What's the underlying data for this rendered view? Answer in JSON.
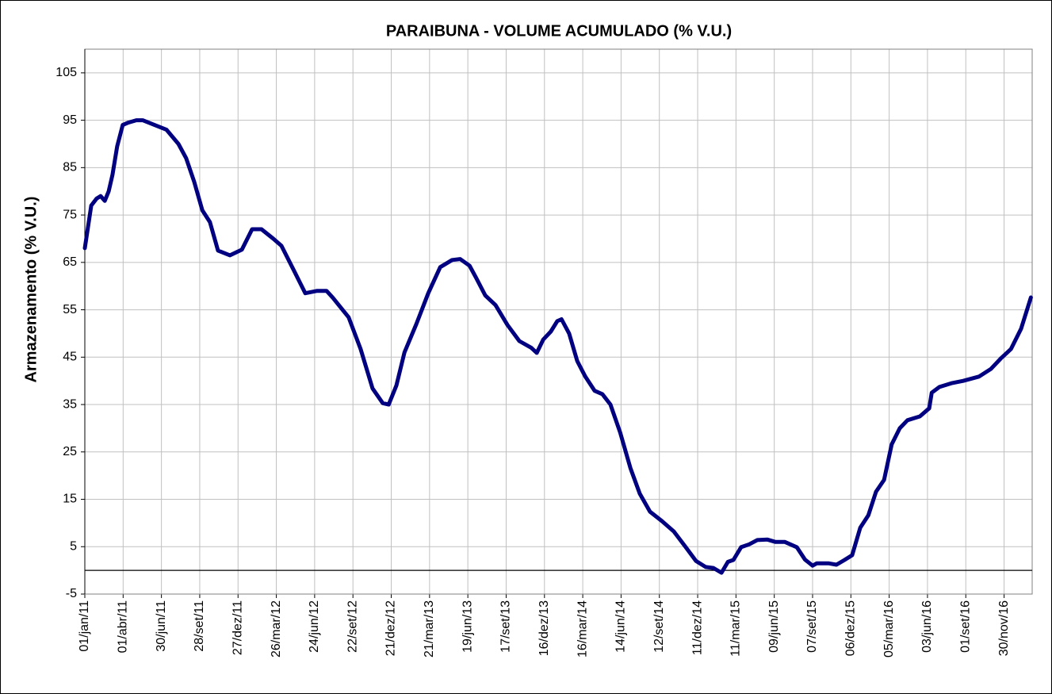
{
  "chart_data": {
    "type": "line",
    "title": "PARAIBUNA - VOLUME ACUMULADO (% V.U.)",
    "y_label": "Armazenamento (% V.U.)",
    "color": "#000080",
    "grid": true,
    "x": [
      "2011-01-01",
      "2011-01-16",
      "2011-01-29",
      "2011-02-07",
      "2011-02-17",
      "2011-02-26",
      "2011-03-07",
      "2011-03-18",
      "2011-03-31",
      "2011-04-13",
      "2011-05-02",
      "2011-05-17",
      "2011-06-14",
      "2011-07-12",
      "2011-08-09",
      "2011-08-27",
      "2011-09-15",
      "2011-10-04",
      "2011-10-22",
      "2011-11-10",
      "2011-12-08",
      "2012-01-05",
      "2012-01-29",
      "2012-02-20",
      "2012-03-19",
      "2012-04-07",
      "2012-05-05",
      "2012-06-02",
      "2012-06-30",
      "2012-07-22",
      "2012-08-06",
      "2012-09-12",
      "2012-10-10",
      "2012-11-07",
      "2012-12-01",
      "2012-12-15",
      "2013-01-02",
      "2013-01-21",
      "2013-02-18",
      "2013-03-18",
      "2013-04-15",
      "2013-05-13",
      "2013-06-01",
      "2013-06-23",
      "2013-07-08",
      "2013-07-30",
      "2013-08-23",
      "2013-09-20",
      "2013-10-18",
      "2013-11-15",
      "2013-11-28",
      "2013-12-13",
      "2013-12-31",
      "2014-01-15",
      "2014-01-25",
      "2014-02-12",
      "2014-03-03",
      "2014-03-22",
      "2014-04-13",
      "2014-05-01",
      "2014-05-20",
      "2014-06-12",
      "2014-07-06",
      "2014-07-28",
      "2014-08-21",
      "2014-09-18",
      "2014-10-16",
      "2014-11-13",
      "2014-12-07",
      "2014-12-30",
      "2015-01-17",
      "2015-02-05",
      "2015-02-20",
      "2015-03-05",
      "2015-03-23",
      "2015-04-11",
      "2015-04-30",
      "2015-05-24",
      "2015-06-12",
      "2015-07-04",
      "2015-08-01",
      "2015-08-20",
      "2015-09-07",
      "2015-09-17",
      "2015-10-14",
      "2015-11-02",
      "2015-11-21",
      "2015-12-09",
      "2015-12-28",
      "2016-01-16",
      "2016-02-03",
      "2016-02-22",
      "2016-03-11",
      "2016-03-30",
      "2016-04-17",
      "2016-05-16",
      "2016-06-07",
      "2016-06-13",
      "2016-07-01",
      "2016-07-29",
      "2016-08-26",
      "2016-10-02",
      "2016-10-30",
      "2016-11-22",
      "2016-12-16",
      "2017-01-09",
      "2017-02-01"
    ],
    "values": [
      68,
      77,
      78.5,
      79,
      78,
      80,
      83.5,
      89.5,
      94,
      94.5,
      95,
      95,
      94,
      93,
      90,
      87,
      82,
      76,
      73.5,
      67.5,
      66.5,
      67.7,
      72,
      72,
      70,
      68.5,
      63.5,
      58.5,
      59,
      59,
      57.5,
      53.4,
      46.7,
      38.4,
      35.3,
      35,
      39,
      46,
      52,
      58.5,
      64,
      65.5,
      65.7,
      64.3,
      61.8,
      58,
      56,
      51.8,
      48.4,
      47,
      45.9,
      48.7,
      50.4,
      52.6,
      53,
      50,
      44.2,
      40.9,
      37.9,
      37.2,
      35,
      29.1,
      21.6,
      16.2,
      12.4,
      10.4,
      8.2,
      4.9,
      2,
      0.7,
      0.5,
      -0.5,
      1.8,
      2.2,
      4.9,
      5.5,
      6.4,
      6.5,
      6,
      6,
      4.9,
      2.3,
      1,
      1.5,
      1.5,
      1.2,
      2.2,
      3.2,
      9,
      11.6,
      16.6,
      19.1,
      26.6,
      30,
      31.7,
      32.5,
      34.2,
      37.5,
      38.7,
      39.5,
      40,
      40.9,
      42.5,
      44.7,
      46.7,
      51,
      57.6
    ],
    "xlim": [
      "2011-01-01",
      "2017-02-04"
    ],
    "xticks": [
      {
        "value": "2011-01-01",
        "label": "01/jan/11"
      },
      {
        "value": "2011-04-01",
        "label": "01/abr/11"
      },
      {
        "value": "2011-06-30",
        "label": "30/jun/11"
      },
      {
        "value": "2011-09-28",
        "label": "28/set/11"
      },
      {
        "value": "2011-12-27",
        "label": "27/dez/11"
      },
      {
        "value": "2012-03-26",
        "label": "26/mar/12"
      },
      {
        "value": "2012-06-24",
        "label": "24/jun/12"
      },
      {
        "value": "2012-09-22",
        "label": "22/set/12"
      },
      {
        "value": "2012-12-21",
        "label": "21/dez/12"
      },
      {
        "value": "2013-03-21",
        "label": "21/mar/13"
      },
      {
        "value": "2013-06-19",
        "label": "19/jun/13"
      },
      {
        "value": "2013-09-17",
        "label": "17/set/13"
      },
      {
        "value": "2013-12-16",
        "label": "16/dez/13"
      },
      {
        "value": "2014-03-16",
        "label": "16/mar/14"
      },
      {
        "value": "2014-06-14",
        "label": "14/jun/14"
      },
      {
        "value": "2014-09-12",
        "label": "12/set/14"
      },
      {
        "value": "2014-12-11",
        "label": "11/dez/14"
      },
      {
        "value": "2015-03-11",
        "label": "11/mar/15"
      },
      {
        "value": "2015-06-09",
        "label": "09/jun/15"
      },
      {
        "value": "2015-09-07",
        "label": "07/set/15"
      },
      {
        "value": "2015-12-06",
        "label": "06/dez/15"
      },
      {
        "value": "2016-03-05",
        "label": "05/mar/16"
      },
      {
        "value": "2016-06-03",
        "label": "03/jun/16"
      },
      {
        "value": "2016-09-01",
        "label": "01/set/16"
      },
      {
        "value": "2016-11-30",
        "label": "30/nov/16"
      }
    ],
    "ylim": [
      -5,
      110
    ],
    "yticks": [
      -5,
      5,
      15,
      25,
      35,
      45,
      55,
      65,
      75,
      85,
      95,
      105
    ]
  }
}
